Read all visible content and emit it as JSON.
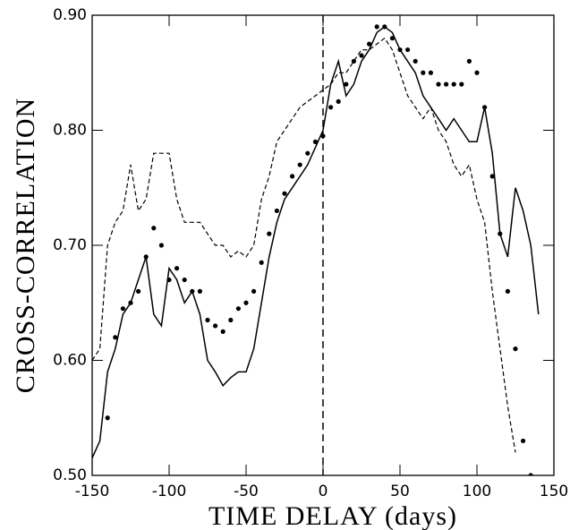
{
  "chart_data": {
    "type": "line",
    "xlabel": "TIME DELAY (days)",
    "ylabel": "CROSS-CORRELATION",
    "x": [
      -150,
      -145,
      -140,
      -135,
      -130,
      -125,
      -120,
      -115,
      -110,
      -105,
      -100,
      -95,
      -90,
      -85,
      -80,
      -75,
      -70,
      -65,
      -60,
      -55,
      -50,
      -45,
      -40,
      -35,
      -30,
      -25,
      -20,
      -15,
      -10,
      -5,
      0,
      5,
      10,
      15,
      20,
      25,
      30,
      35,
      40,
      45,
      50,
      55,
      60,
      65,
      70,
      75,
      80,
      85,
      90,
      95,
      100,
      105,
      110,
      115,
      120,
      125,
      130,
      135,
      140
    ],
    "series": [
      {
        "style": "solid",
        "color": "#000000",
        "values": [
          0.515,
          0.53,
          0.59,
          0.61,
          0.64,
          0.65,
          0.67,
          0.69,
          0.64,
          0.63,
          0.68,
          0.67,
          0.65,
          0.66,
          0.64,
          0.6,
          0.59,
          0.578,
          0.585,
          0.59,
          0.59,
          0.61,
          0.65,
          0.69,
          0.72,
          0.74,
          0.75,
          0.76,
          0.77,
          0.785,
          0.8,
          0.84,
          0.86,
          0.83,
          0.84,
          0.86,
          0.87,
          0.885,
          0.89,
          0.885,
          0.87,
          0.86,
          0.85,
          0.83,
          0.82,
          0.81,
          0.8,
          0.81,
          0.8,
          0.79,
          0.79,
          0.82,
          0.78,
          0.71,
          0.69,
          0.75,
          0.73,
          0.7,
          0.64
        ]
      },
      {
        "style": "dashed",
        "color": "#000000",
        "values": [
          0.6,
          0.61,
          0.7,
          0.72,
          0.73,
          0.77,
          0.73,
          0.74,
          0.78,
          0.78,
          0.78,
          0.74,
          0.72,
          0.72,
          0.72,
          0.71,
          0.7,
          0.7,
          0.69,
          0.695,
          0.69,
          0.7,
          0.74,
          0.76,
          0.79,
          0.8,
          0.81,
          0.82,
          0.825,
          0.83,
          0.835,
          0.84,
          0.85,
          0.85,
          0.86,
          0.87,
          0.87,
          0.875,
          0.88,
          0.87,
          0.85,
          0.83,
          0.82,
          0.81,
          0.82,
          0.8,
          0.79,
          0.77,
          0.76,
          0.77,
          0.74,
          0.72,
          0.66,
          0.61,
          0.56,
          0.52,
          null,
          null,
          null
        ]
      },
      {
        "style": "dotted",
        "color": "#000000",
        "values": [
          null,
          null,
          0.55,
          0.62,
          0.645,
          0.65,
          0.66,
          0.69,
          0.715,
          0.7,
          0.67,
          0.68,
          0.67,
          0.66,
          0.66,
          0.635,
          0.63,
          0.625,
          0.635,
          0.645,
          0.65,
          0.66,
          0.685,
          0.71,
          0.73,
          0.745,
          0.76,
          0.77,
          0.78,
          0.79,
          0.795,
          0.82,
          0.825,
          0.84,
          0.86,
          0.865,
          0.875,
          0.89,
          0.89,
          0.88,
          0.87,
          0.87,
          0.86,
          0.85,
          0.85,
          0.84,
          0.84,
          0.84,
          0.84,
          0.86,
          0.85,
          0.82,
          0.76,
          0.71,
          0.66,
          0.61,
          0.53,
          0.5,
          null
        ]
      }
    ],
    "reference_line_x": 0,
    "xlim": [
      -150,
      150
    ],
    "xticks": [
      -150,
      -100,
      -50,
      0,
      50,
      100,
      150
    ],
    "ylim": [
      0.5,
      0.9
    ],
    "yticks": [
      {
        "value": 0.5,
        "label": "0.50"
      },
      {
        "value": 0.6,
        "label": "0.60"
      },
      {
        "value": 0.7,
        "label": "0.70"
      },
      {
        "value": 0.8,
        "label": "0.80"
      },
      {
        "value": 0.9,
        "label": "0.90"
      }
    ]
  }
}
